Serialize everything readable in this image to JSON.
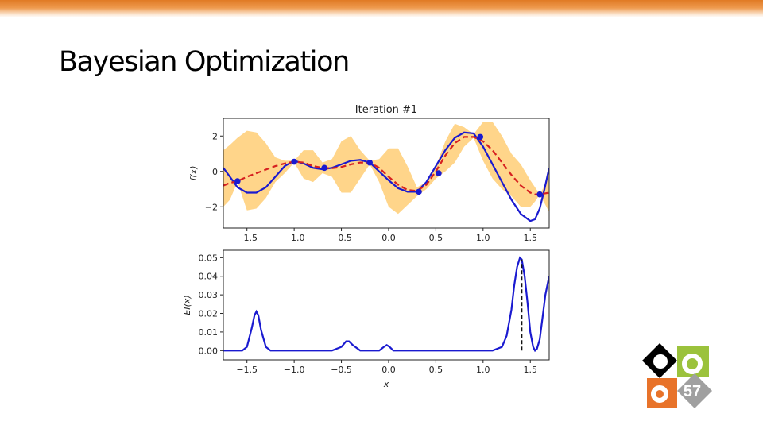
{
  "slide": {
    "title": "Bayesian Optimization",
    "page_number": "57"
  },
  "colors": {
    "accent_orange": "#e07a24",
    "gp_mean": "#d62020",
    "objective": "#1a1ad0",
    "confidence_band": "#ffd58a",
    "logo_green": "#9bc23c",
    "logo_orange": "#e8732a",
    "logo_gray": "#a0a0a0"
  },
  "chart_data": [
    {
      "type": "line",
      "title": "Iteration #1",
      "xlabel": "",
      "ylabel": "f(x)",
      "xlim": [
        -1.75,
        1.7
      ],
      "ylim": [
        -3.2,
        3.0
      ],
      "xticks": [
        "−1.5",
        "−1.0",
        "−0.5",
        "0.0",
        "0.5",
        "1.0",
        "1.5"
      ],
      "yticks": [
        "2",
        "0",
        "−2"
      ],
      "x": [
        -1.75,
        -1.68,
        -1.6,
        -1.5,
        -1.4,
        -1.3,
        -1.2,
        -1.1,
        -1.0,
        -0.9,
        -0.8,
        -0.7,
        -0.6,
        -0.5,
        -0.4,
        -0.3,
        -0.2,
        -0.1,
        0.0,
        0.1,
        0.2,
        0.3,
        0.4,
        0.5,
        0.6,
        0.7,
        0.8,
        0.9,
        1.0,
        1.1,
        1.2,
        1.3,
        1.4,
        1.5,
        1.55,
        1.6,
        1.65,
        1.7
      ],
      "series": [
        {
          "kind": "objective",
          "values": [
            0.2,
            -0.3,
            -0.9,
            -1.2,
            -1.2,
            -0.9,
            -0.3,
            0.3,
            0.6,
            0.45,
            0.2,
            0.12,
            0.2,
            0.4,
            0.6,
            0.65,
            0.5,
            0.0,
            -0.5,
            -0.95,
            -1.15,
            -1.15,
            -0.6,
            0.3,
            1.2,
            1.9,
            2.2,
            2.15,
            1.4,
            0.4,
            -0.6,
            -1.6,
            -2.4,
            -2.8,
            -2.7,
            -2.1,
            -1.0,
            0.2
          ]
        },
        {
          "kind": "gp-mean",
          "values": [
            -0.8,
            -0.65,
            -0.55,
            -0.3,
            -0.1,
            0.1,
            0.3,
            0.45,
            0.55,
            0.5,
            0.3,
            0.2,
            0.18,
            0.25,
            0.4,
            0.5,
            0.5,
            0.2,
            -0.3,
            -0.75,
            -1.05,
            -1.1,
            -0.75,
            0.0,
            0.9,
            1.6,
            1.95,
            1.95,
            1.7,
            1.2,
            0.5,
            -0.2,
            -0.8,
            -1.2,
            -1.3,
            -1.3,
            -1.25,
            -1.2
          ]
        },
        {
          "kind": "band-upper",
          "values": [
            1.2,
            1.5,
            1.9,
            2.3,
            2.2,
            1.6,
            0.8,
            0.6,
            0.6,
            1.2,
            1.2,
            0.5,
            0.7,
            1.7,
            2.0,
            1.2,
            0.6,
            0.7,
            1.3,
            1.3,
            0.3,
            -0.9,
            -0.6,
            0.3,
            1.7,
            2.7,
            2.5,
            2.1,
            2.8,
            2.8,
            2.0,
            1.0,
            0.4,
            -0.5,
            -0.9,
            -1.3,
            -0.8,
            0.2
          ]
        },
        {
          "kind": "band-lower",
          "values": [
            -2.0,
            -1.6,
            -0.6,
            -2.2,
            -2.1,
            -1.5,
            -0.6,
            -0.1,
            0.5,
            -0.4,
            -0.6,
            -0.1,
            -0.3,
            -1.2,
            -1.2,
            -0.4,
            0.4,
            -0.6,
            -2.0,
            -2.4,
            -1.9,
            -1.4,
            -1.0,
            -0.4,
            0.0,
            0.5,
            1.4,
            1.9,
            0.6,
            -0.4,
            -1.0,
            -1.4,
            -2.0,
            -2.0,
            -1.7,
            -1.3,
            -1.8,
            -2.3
          ]
        }
      ],
      "samples": {
        "x": [
          -1.6,
          -1.0,
          -0.68,
          -0.2,
          0.32,
          0.53,
          0.97,
          1.6
        ],
        "y": [
          -0.55,
          0.55,
          0.2,
          0.5,
          -1.15,
          -0.1,
          1.95,
          -1.3
        ]
      }
    },
    {
      "type": "line",
      "title": "",
      "xlabel": "x",
      "ylabel": "EI(x)",
      "xlim": [
        -1.75,
        1.7
      ],
      "ylim": [
        -0.005,
        0.054
      ],
      "xticks": [
        "−1.5",
        "−1.0",
        "−0.5",
        "0.0",
        "0.5",
        "1.0",
        "1.5"
      ],
      "yticks": [
        "0.05",
        "0.04",
        "0.03",
        "0.02",
        "0.01",
        "0.00"
      ],
      "series": [
        {
          "kind": "expected-improvement",
          "x": [
            -1.75,
            -1.55,
            -1.5,
            -1.45,
            -1.42,
            -1.4,
            -1.38,
            -1.35,
            -1.3,
            -1.25,
            -1.2,
            -0.6,
            -0.5,
            -0.45,
            -0.42,
            -0.38,
            -0.3,
            -0.1,
            -0.05,
            -0.02,
            0.01,
            0.05,
            0.1,
            1.1,
            1.2,
            1.25,
            1.3,
            1.33,
            1.36,
            1.39,
            1.41,
            1.44,
            1.47,
            1.5,
            1.53,
            1.55,
            1.57,
            1.6,
            1.63,
            1.66,
            1.7
          ],
          "values": [
            0.0,
            0.0,
            0.002,
            0.012,
            0.019,
            0.021,
            0.019,
            0.011,
            0.002,
            0.0,
            0.0,
            0.0,
            0.002,
            0.005,
            0.005,
            0.003,
            0.0,
            0.0,
            0.002,
            0.003,
            0.002,
            0.0,
            0.0,
            0.0,
            0.002,
            0.008,
            0.022,
            0.035,
            0.045,
            0.05,
            0.049,
            0.04,
            0.026,
            0.01,
            0.002,
            0.0,
            0.001,
            0.006,
            0.018,
            0.03,
            0.04
          ]
        }
      ],
      "next_point": 1.41
    }
  ]
}
